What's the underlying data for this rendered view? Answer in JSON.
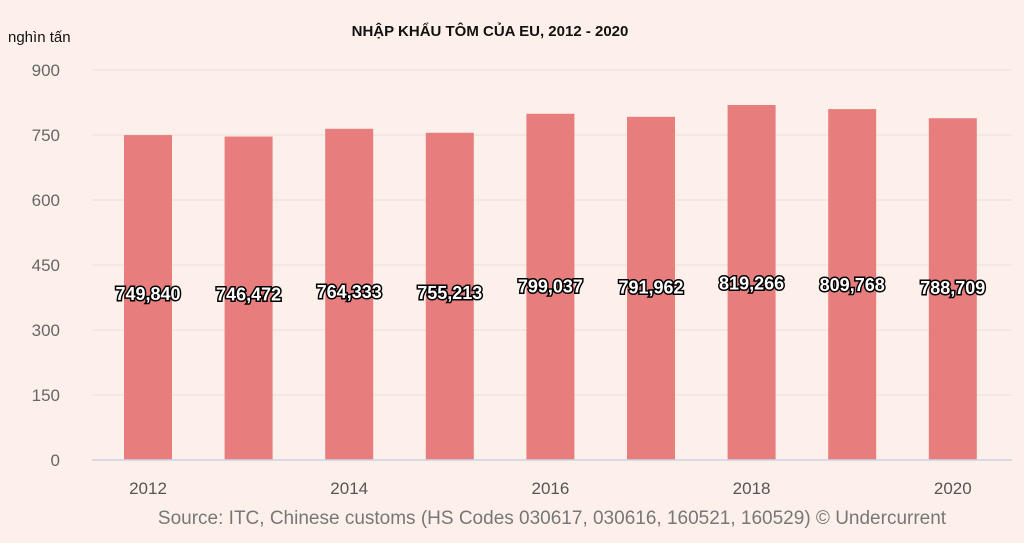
{
  "chart_data": {
    "type": "bar",
    "title": "NHẬP KHẨU TÔM CỦA EU, 2012 - 2020",
    "ylabel": "nghìn tấn",
    "xlabel": "",
    "categories": [
      "2012",
      "2013",
      "2014",
      "2015",
      "2016",
      "2017",
      "2018",
      "2019",
      "2020"
    ],
    "values": [
      749.84,
      746.472,
      764.333,
      755.213,
      799.037,
      791.962,
      819.266,
      809.768,
      788.709
    ],
    "data_labels": [
      "749,840",
      "746,472",
      "764,333",
      "755,213",
      "799,037",
      "791,962",
      "819,266",
      "809,768",
      "788,709"
    ],
    "x_tick_labels": [
      "2012",
      "",
      "2014",
      "",
      "2016",
      "",
      "2018",
      "",
      "2020"
    ],
    "ylim": [
      0,
      900
    ],
    "yticks": [
      0,
      150,
      300,
      450,
      600,
      750,
      900
    ],
    "grid": true,
    "bar_color": "#e87d7e",
    "source": "Source: ITC, Chinese customs (HS Codes 030617, 030616, 160521, 160529)  © Undercurrent"
  }
}
